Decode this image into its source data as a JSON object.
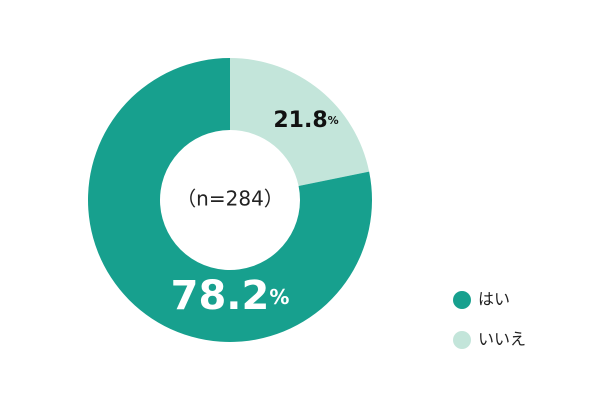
{
  "chart_data": {
    "type": "donut",
    "categories": [
      "はい",
      "いいえ"
    ],
    "values": [
      78.2,
      21.8
    ],
    "value_labels": [
      "78.2%",
      "21.8%"
    ],
    "colors": [
      "#17a08e",
      "#c3e5da"
    ],
    "center_label": "（n=284）",
    "legend": "lower right"
  }
}
